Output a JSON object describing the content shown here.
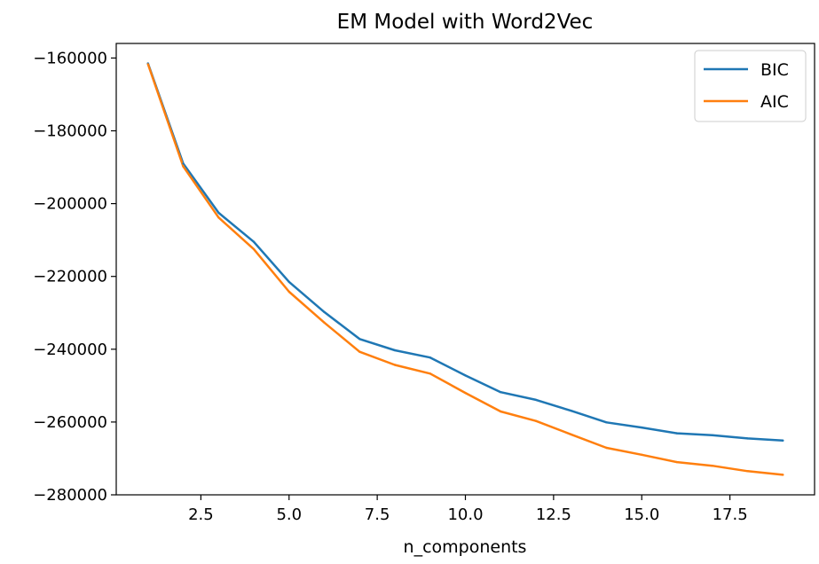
{
  "chart_data": {
    "type": "line",
    "title": "EM Model with Word2Vec",
    "xlabel": "n_components",
    "ylabel": "",
    "xlim": [
      0.1,
      19.9
    ],
    "ylim": [
      -280000,
      -156000
    ],
    "xticks": [
      2.5,
      5.0,
      7.5,
      10.0,
      12.5,
      15.0,
      17.5
    ],
    "xtick_labels": [
      "2.5",
      "5.0",
      "7.5",
      "10.0",
      "12.5",
      "15.0",
      "17.5"
    ],
    "yticks": [
      -160000,
      -180000,
      -200000,
      -220000,
      -240000,
      -260000,
      -280000
    ],
    "ytick_labels": [
      "−160000",
      "−180000",
      "−200000",
      "−220000",
      "−240000",
      "−260000",
      "−280000"
    ],
    "grid": false,
    "legend_position": "top-right",
    "x": [
      1,
      2,
      3,
      4,
      5,
      6,
      7,
      8,
      9,
      10,
      11,
      12,
      13,
      14,
      15,
      16,
      17,
      18,
      19
    ],
    "series": [
      {
        "name": "BIC",
        "color": "#1f77b4",
        "values": [
          -161500,
          -189000,
          -202500,
          -210500,
          -221500,
          -229800,
          -237200,
          -240300,
          -242300,
          -247200,
          -251800,
          -253900,
          -256900,
          -260100,
          -261500,
          -263100,
          -263600,
          -264500,
          -265100
        ]
      },
      {
        "name": "AIC",
        "color": "#ff7f0e",
        "values": [
          -161700,
          -189800,
          -203800,
          -212500,
          -224200,
          -232700,
          -240700,
          -244300,
          -246700,
          -252000,
          -257100,
          -259700,
          -263400,
          -267100,
          -269000,
          -271000,
          -272000,
          -273500,
          -274500
        ]
      }
    ]
  }
}
